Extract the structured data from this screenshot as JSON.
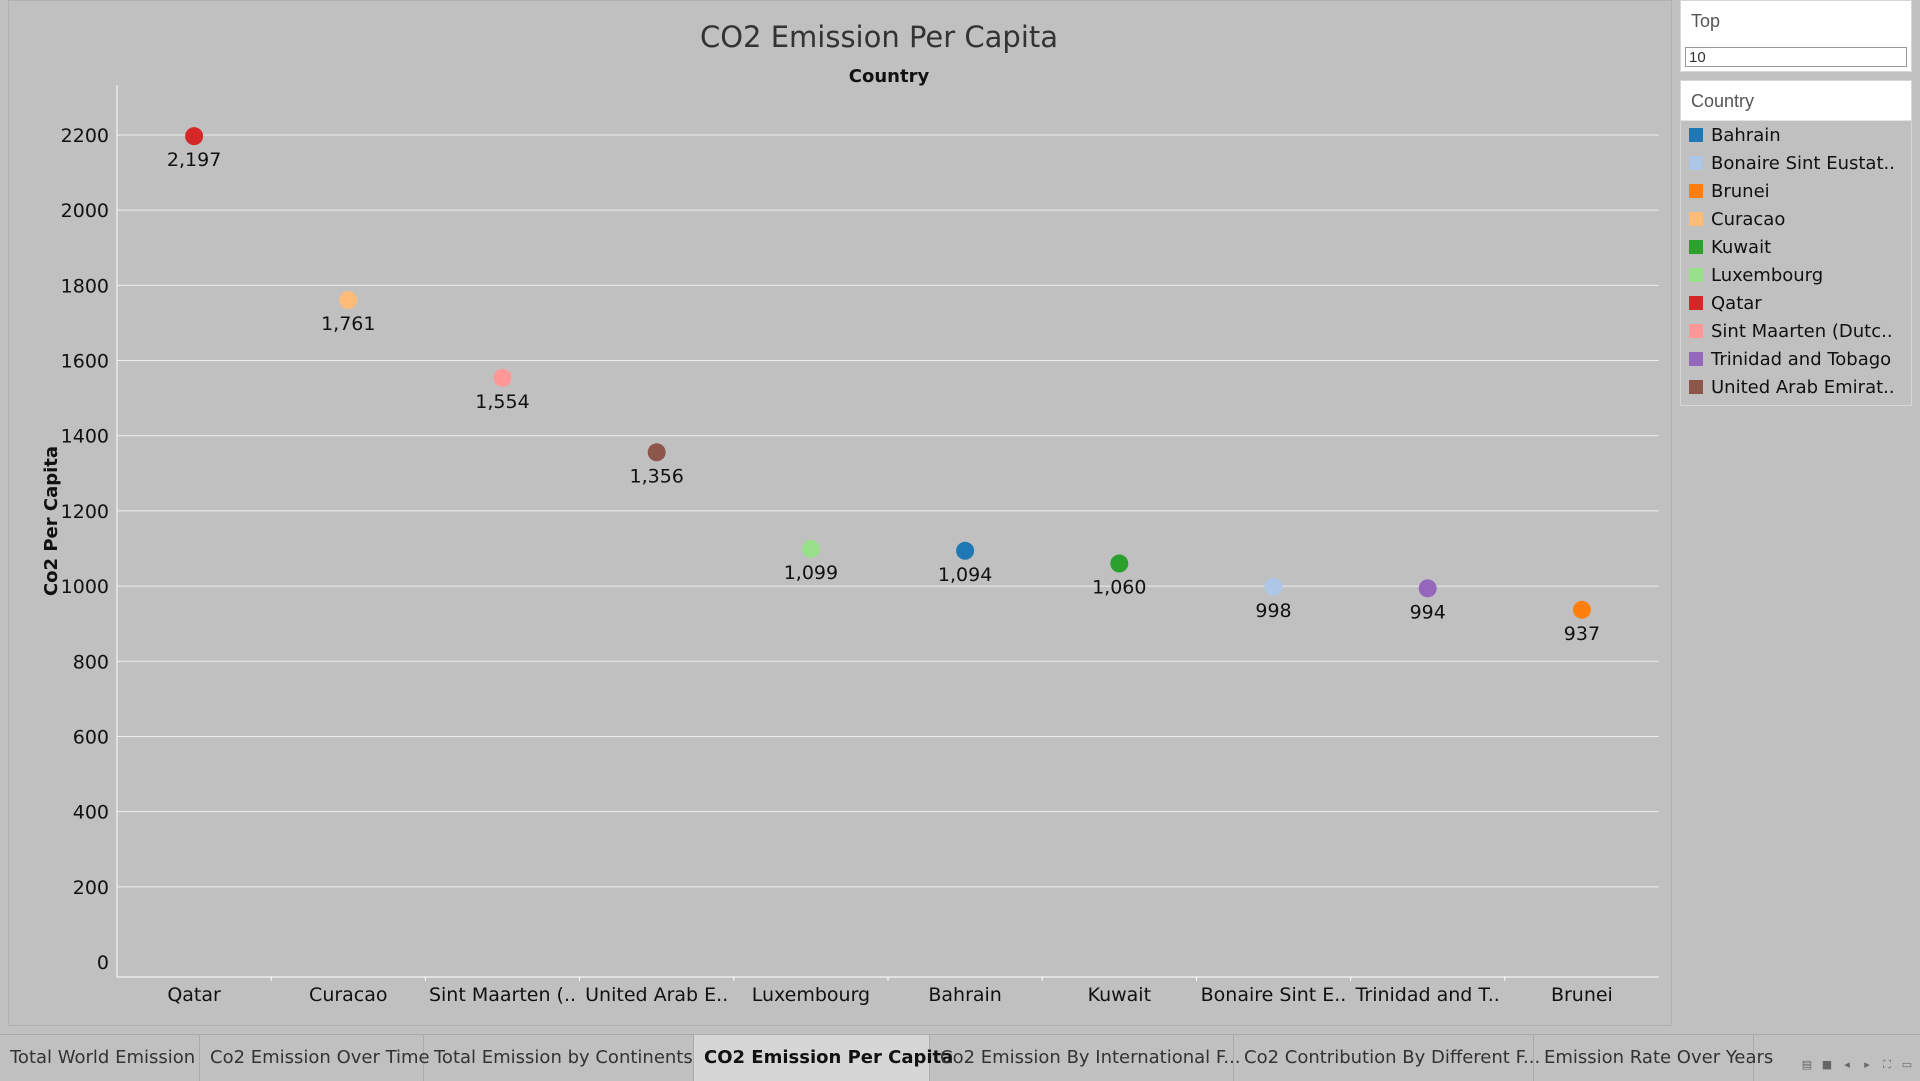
{
  "chart_data": {
    "type": "scatter",
    "title": "CO2 Emission Per Capita",
    "column_header": "Country",
    "ylabel": "Co2 Per Capita",
    "xlabel": "",
    "ylim": [
      0,
      2300
    ],
    "yticks": [
      0,
      200,
      400,
      600,
      800,
      1000,
      1200,
      1400,
      1600,
      1800,
      2000,
      2200
    ],
    "grid": true,
    "categories": [
      "Qatar",
      "Curacao",
      "Sint Maarten (..",
      "United Arab E..",
      "Luxembourg",
      "Bahrain",
      "Kuwait",
      "Bonaire Sint E..",
      "Trinidad and T..",
      "Brunei"
    ],
    "values": [
      2197,
      1761,
      1554,
      1356,
      1099,
      1094,
      1060,
      998,
      994,
      937
    ],
    "value_labels": [
      "2,197",
      "1,761",
      "1,554",
      "1,356",
      "1,099",
      "1,094",
      "1,060",
      "998",
      "994",
      "937"
    ],
    "point_colors": [
      "#d62728",
      "#ffbb78",
      "#ff9896",
      "#8c564b",
      "#98df8a",
      "#1f77b4",
      "#2ca02c",
      "#aec7e8",
      "#9467bd",
      "#ff7f0e"
    ]
  },
  "filter": {
    "title": "Top",
    "value": "10"
  },
  "legend": {
    "title": "Country",
    "items": [
      {
        "label": "Bahrain",
        "color": "#1f77b4"
      },
      {
        "label": "Bonaire Sint Eustat..",
        "color": "#aec7e8"
      },
      {
        "label": "Brunei",
        "color": "#ff7f0e"
      },
      {
        "label": "Curacao",
        "color": "#ffbb78"
      },
      {
        "label": "Kuwait",
        "color": "#2ca02c"
      },
      {
        "label": "Luxembourg",
        "color": "#98df8a"
      },
      {
        "label": "Qatar",
        "color": "#d62728"
      },
      {
        "label": "Sint Maarten (Dutc..",
        "color": "#ff9896"
      },
      {
        "label": "Trinidad and Tobago",
        "color": "#9467bd"
      },
      {
        "label": "United Arab Emirat..",
        "color": "#8c564b"
      }
    ]
  },
  "tabs": [
    {
      "label": "Total World Emission",
      "active": false
    },
    {
      "label": "Co2 Emission Over Time",
      "active": false
    },
    {
      "label": "Total Emission by Continents",
      "active": false
    },
    {
      "label": "CO2 Emission Per Capita",
      "active": true
    },
    {
      "label": "Co2 Emission By International  F...",
      "active": false
    },
    {
      "label": "Co2 Contribution By Different F...",
      "active": false
    },
    {
      "label": "Emission Rate Over Years",
      "active": false
    }
  ],
  "tab_controls": [
    "sheet-sorter-icon",
    "film-strip-icon",
    "prev-sheet-icon",
    "next-sheet-icon",
    "fullscreen-icon",
    "presentation-icon"
  ]
}
